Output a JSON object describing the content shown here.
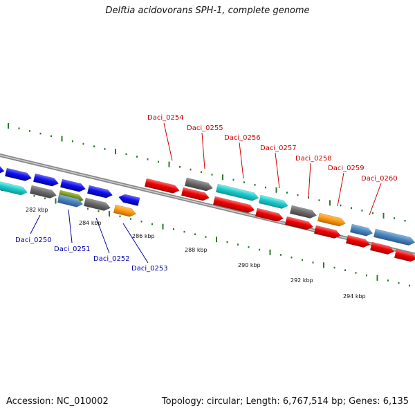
{
  "title": "Delftia acidovorans SPH-1, complete genome",
  "footer": {
    "accession": "Accession: NC_010002",
    "summary": "Topology: circular; Length: 6,767,514 bp; Genes: 6,135"
  },
  "scale_labels": [
    "282 kbp",
    "284 kbp",
    "286 kbp",
    "288 kbp",
    "290 kbp",
    "292 kbp",
    "294 kbp"
  ],
  "colors": {
    "top_label": "#cc0000",
    "bottom_label": "#0000aa",
    "backbone": "#888888",
    "tick": "#2a7a2a"
  },
  "gene_labels_top": [
    "Daci_0254",
    "Daci_0255",
    "Daci_0256",
    "Daci_0257",
    "Daci_0258",
    "Daci_0259",
    "Daci_0260"
  ],
  "gene_labels_bottom": [
    "Daci_0250",
    "Daci_0251",
    "Daci_0252",
    "Daci_0253"
  ]
}
